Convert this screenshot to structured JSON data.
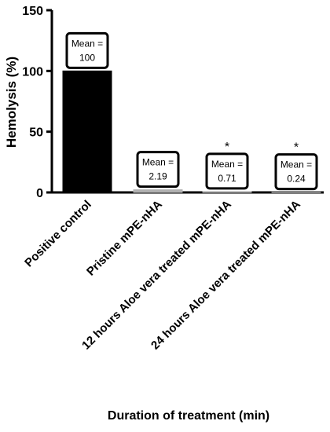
{
  "chart_data": {
    "type": "bar",
    "y_label": "Hemolysis (%)",
    "x_label": "Duration of treatment  (min)",
    "categories": [
      "Positive control",
      "Pristine mPE-nHA",
      "12 hours Aloe vera treated mPE-nHA",
      "24 hours Aloe vera treated mPE-nHA"
    ],
    "values": [
      100,
      2.19,
      0.71,
      0.24
    ],
    "colors": [
      "#000000",
      "#b0b0b0",
      "#b0b0b0",
      "#b0b0b0"
    ],
    "value_label_prefix": "Mean =",
    "significance": [
      null,
      null,
      "*",
      "*"
    ],
    "ylim": [
      0,
      150
    ],
    "yticks": [
      0,
      50,
      100,
      150
    ]
  }
}
